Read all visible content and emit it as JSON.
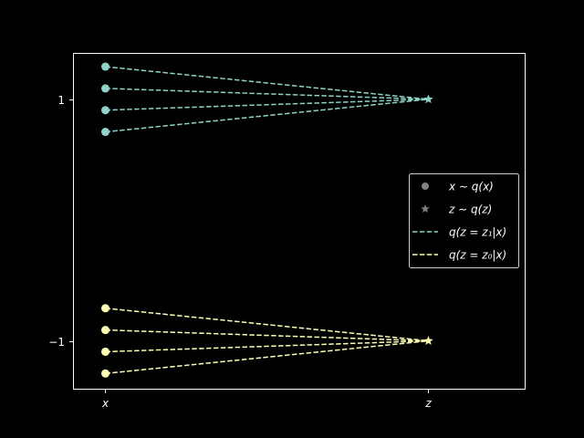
{
  "chart_data": {
    "type": "scatter",
    "x_categories": [
      "x",
      "z"
    ],
    "y_ticks": [
      {
        "value": 1,
        "label": "1"
      },
      {
        "value": -1,
        "label": "−1"
      }
    ],
    "ylim": [
      -1.4,
      1.38
    ],
    "grid": false,
    "legend_position": "center-right",
    "legend": [
      {
        "label": "x ∼ q(x)",
        "marker": "circle",
        "color": "#808080"
      },
      {
        "label": "z ∼ q(z)",
        "marker": "star",
        "color": "#808080"
      },
      {
        "label": "q(z = z₁|x)",
        "marker": "dashed-line",
        "color": "#8dd3c7"
      },
      {
        "label": "q(z = z₀|x)",
        "marker": "dashed-line",
        "color": "#feffb3"
      }
    ],
    "groups": [
      {
        "color": "#8dd3c7",
        "z_value": 1,
        "x_values": [
          1.27,
          1.09,
          0.91,
          0.73
        ]
      },
      {
        "color": "#feffb3",
        "z_value": -1,
        "x_values": [
          -0.73,
          -0.91,
          -1.09,
          -1.27
        ]
      }
    ]
  }
}
